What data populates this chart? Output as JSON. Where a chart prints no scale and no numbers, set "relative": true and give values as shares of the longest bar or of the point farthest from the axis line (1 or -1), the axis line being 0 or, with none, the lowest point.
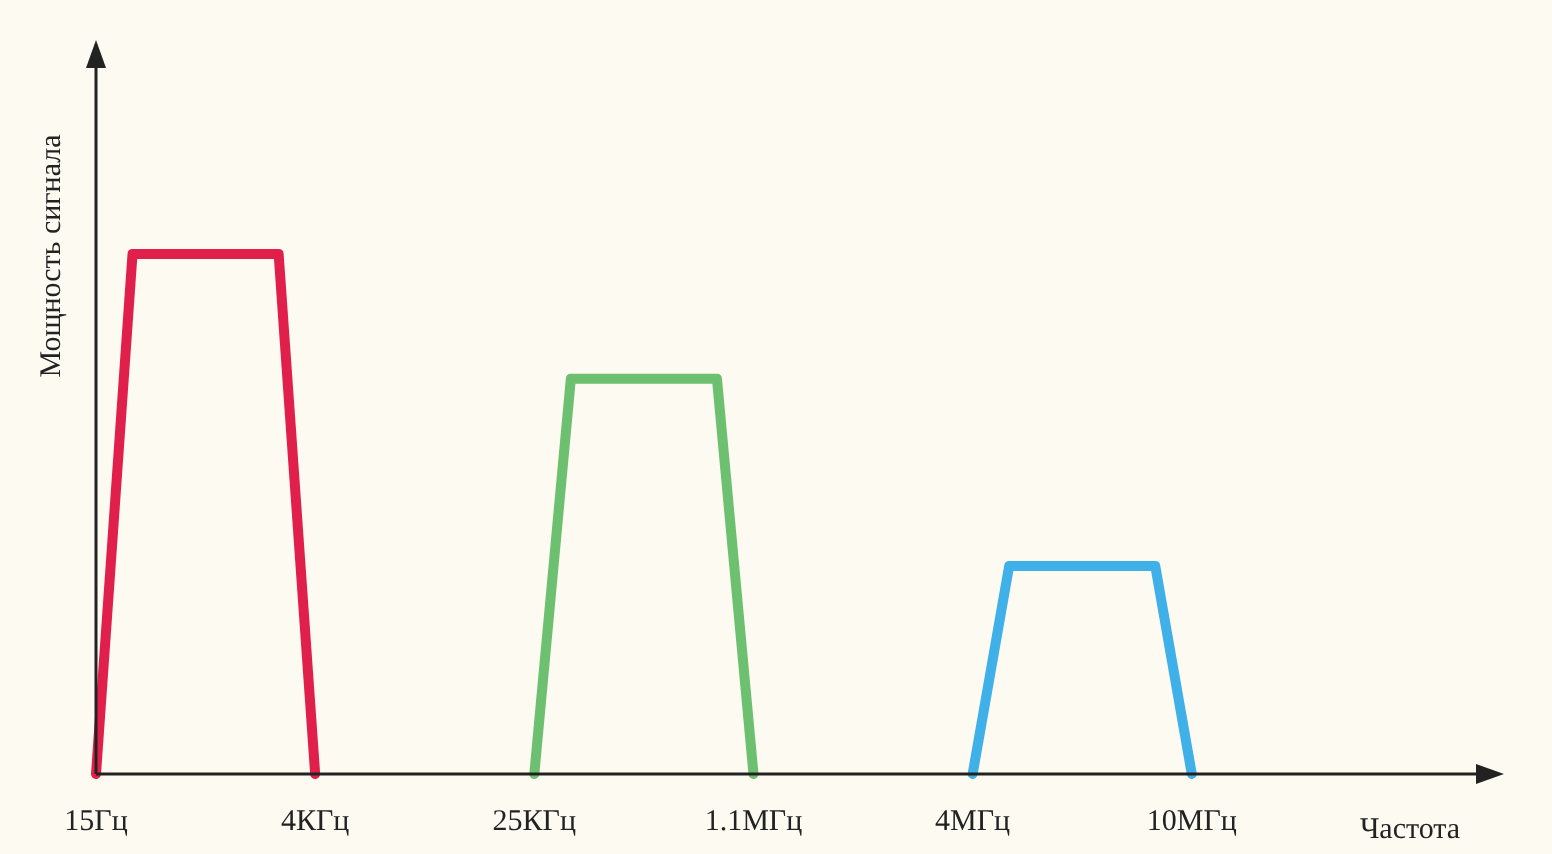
{
  "chart_data": {
    "type": "line",
    "relative": true,
    "xlabel": "Частота",
    "ylabel": "Мощность сигнала",
    "categories": [
      "15Гц",
      null,
      null,
      null,
      null,
      null,
      "4КГц",
      null,
      null,
      null,
      null,
      null,
      "25КГц",
      null,
      null,
      null,
      null,
      null,
      "1.1МГц",
      null,
      null,
      null,
      null,
      null,
      "4МГц",
      null,
      null,
      null,
      null,
      null,
      "10МГц",
      null,
      null,
      null,
      null,
      null,
      null,
      null,
      null
    ],
    "grid": false,
    "marker": "none",
    "line_style": "solid",
    "series": [
      {
        "color": "#e0204a",
        "values": [
          0,
          1,
          1,
          1,
          1,
          1,
          0,
          null,
          null,
          null,
          null,
          null,
          null,
          null,
          null,
          null,
          null,
          null,
          null,
          null,
          null,
          null,
          null,
          null,
          null,
          null,
          null,
          null,
          null,
          null,
          null,
          null,
          null,
          null,
          null,
          null,
          null,
          null,
          null
        ]
      },
      {
        "color": "#6cc070",
        "values": [
          null,
          null,
          null,
          null,
          null,
          null,
          null,
          null,
          null,
          null,
          null,
          null,
          0,
          0.76,
          0.76,
          0.76,
          0.76,
          0.76,
          0,
          null,
          null,
          null,
          null,
          null,
          null,
          null,
          null,
          null,
          null,
          null,
          null,
          null,
          null,
          null,
          null,
          null,
          null,
          null,
          null
        ]
      },
      {
        "color": "#40b0e8",
        "values": [
          null,
          null,
          null,
          null,
          null,
          null,
          null,
          null,
          null,
          null,
          null,
          null,
          null,
          null,
          null,
          null,
          null,
          null,
          null,
          null,
          null,
          null,
          null,
          null,
          0,
          0.4,
          0.4,
          0.4,
          0.4,
          0.4,
          0,
          null,
          null,
          null,
          null,
          null,
          null,
          null,
          null
        ]
      }
    ]
  }
}
